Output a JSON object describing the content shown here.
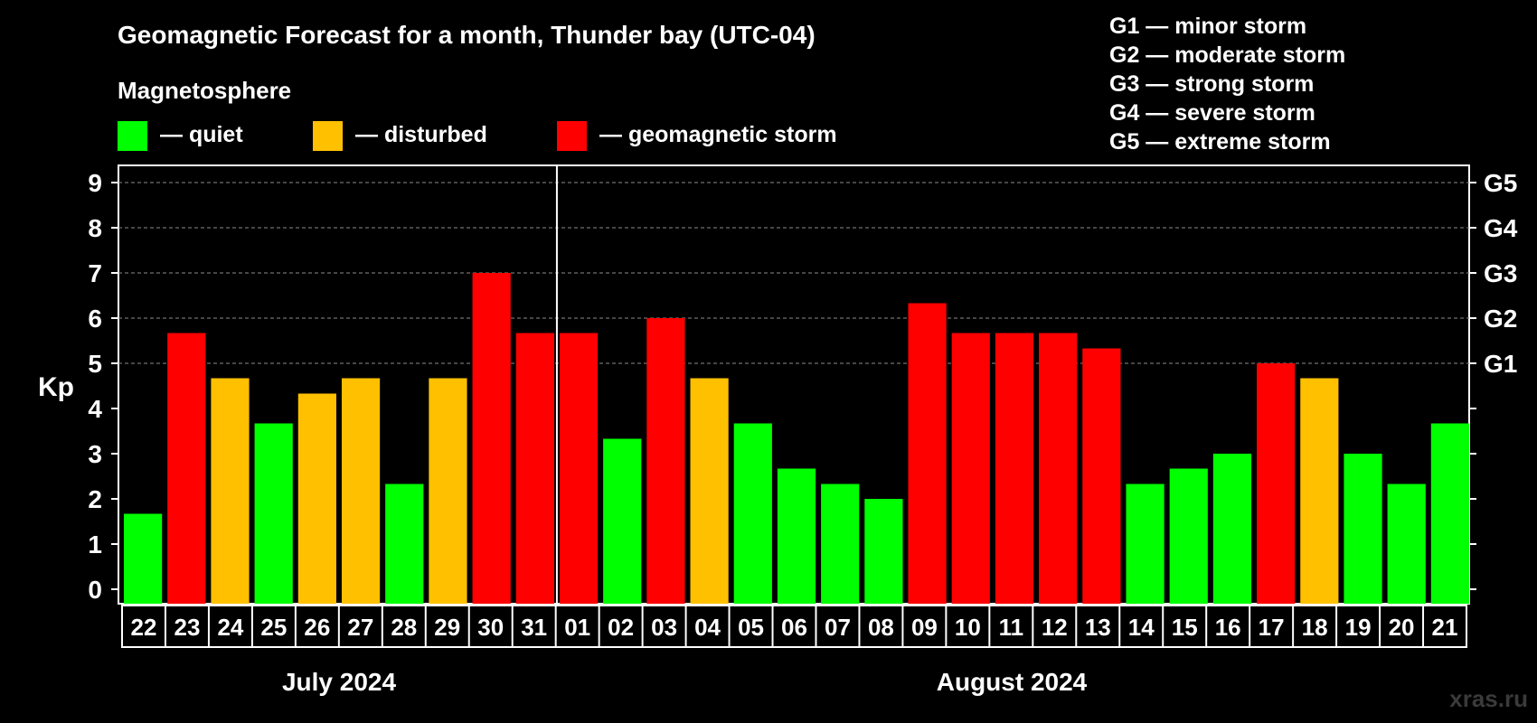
{
  "header": {
    "title": "Geomagnetic Forecast for a month, Thunder bay (UTC-04)",
    "subtitle": "Magnetosphere"
  },
  "legend": [
    {
      "key": "quiet",
      "label": "— quiet",
      "color": "#00ff00"
    },
    {
      "key": "disturbed",
      "label": "— disturbed",
      "color": "#ffc000"
    },
    {
      "key": "storm",
      "label": "— geomagnetic storm",
      "color": "#ff0000"
    }
  ],
  "storm_scale": [
    "G1 — minor storm",
    "G2 — moderate storm",
    "G3 — strong storm",
    "G4 — severe storm",
    "G5 — extreme storm"
  ],
  "months": [
    "July 2024",
    "August 2024"
  ],
  "watermark": "xras.ru",
  "chart_data": {
    "type": "bar",
    "ylabel": "Kp",
    "ylim": [
      0,
      9
    ],
    "yticks": [
      "0",
      "1",
      "2",
      "3",
      "4",
      "5",
      "6",
      "7",
      "8",
      "9"
    ],
    "right_ticks": [
      {
        "kp": 5,
        "label": "G1"
      },
      {
        "kp": 6,
        "label": "G2"
      },
      {
        "kp": 7,
        "label": "G3"
      },
      {
        "kp": 8,
        "label": "G4"
      },
      {
        "kp": 9,
        "label": "G5"
      }
    ],
    "grid": "dashed horizontal at Kp 5–9",
    "categories": [
      "22",
      "23",
      "24",
      "25",
      "26",
      "27",
      "28",
      "29",
      "30",
      "31",
      "01",
      "02",
      "03",
      "04",
      "05",
      "06",
      "07",
      "08",
      "09",
      "10",
      "11",
      "12",
      "13",
      "14",
      "15",
      "16",
      "17",
      "18",
      "19",
      "20",
      "21"
    ],
    "values": [
      1.67,
      5.67,
      4.67,
      3.67,
      4.33,
      4.67,
      2.33,
      4.67,
      7.0,
      5.67,
      5.67,
      3.33,
      6.0,
      4.67,
      3.67,
      2.67,
      2.33,
      2.0,
      6.33,
      5.67,
      5.67,
      5.67,
      5.33,
      2.33,
      2.67,
      3.0,
      5.0,
      4.67,
      3.0,
      2.33,
      3.67
    ],
    "levels": [
      "quiet",
      "storm",
      "disturbed",
      "quiet",
      "disturbed",
      "disturbed",
      "quiet",
      "disturbed",
      "storm",
      "storm",
      "storm",
      "quiet",
      "storm",
      "disturbed",
      "quiet",
      "quiet",
      "quiet",
      "quiet",
      "storm",
      "storm",
      "storm",
      "storm",
      "storm",
      "quiet",
      "quiet",
      "quiet",
      "storm",
      "disturbed",
      "quiet",
      "quiet",
      "quiet"
    ],
    "month_split_after": "31"
  }
}
